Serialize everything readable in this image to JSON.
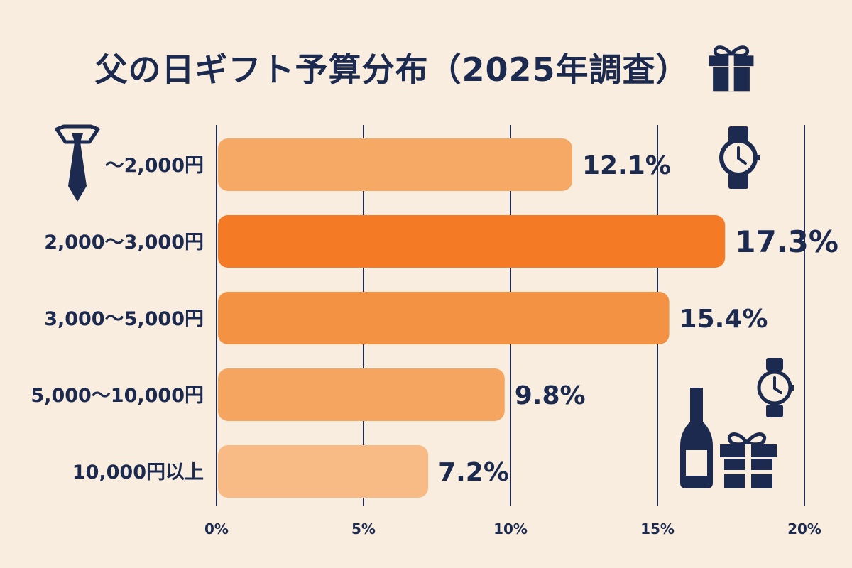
{
  "chart_data": {
    "type": "bar",
    "orientation": "horizontal",
    "title": "父の日ギフト予算分布（2025年調査）",
    "categories": [
      "〜2,000円",
      "2,000〜3,000円",
      "3,000〜5,000円",
      "5,000〜10,000円",
      "10,000円以上"
    ],
    "values": [
      12.1,
      17.3,
      15.4,
      9.8,
      7.2
    ],
    "value_labels": [
      "12.1%",
      "17.3%",
      "15.4%",
      "9.8%",
      "7.2%"
    ],
    "bar_colors": [
      "#f6a865",
      "#f57a26",
      "#f49244",
      "#f6a560",
      "#f8bb86"
    ],
    "xlim": [
      0,
      20
    ],
    "xticks": [
      0,
      5,
      10,
      15,
      20
    ],
    "xtick_labels": [
      "0%",
      "5%",
      "10%",
      "15%",
      "20%"
    ],
    "xlabel": "",
    "ylabel": "",
    "grid": true,
    "legend": "none"
  },
  "colors": {
    "background": "#f9ede0",
    "ink": "#1b2a4e",
    "highlight": "#f57a26"
  },
  "icons": [
    "gift-icon",
    "necktie-icon",
    "wristwatch-icon",
    "bottle-icon"
  ]
}
